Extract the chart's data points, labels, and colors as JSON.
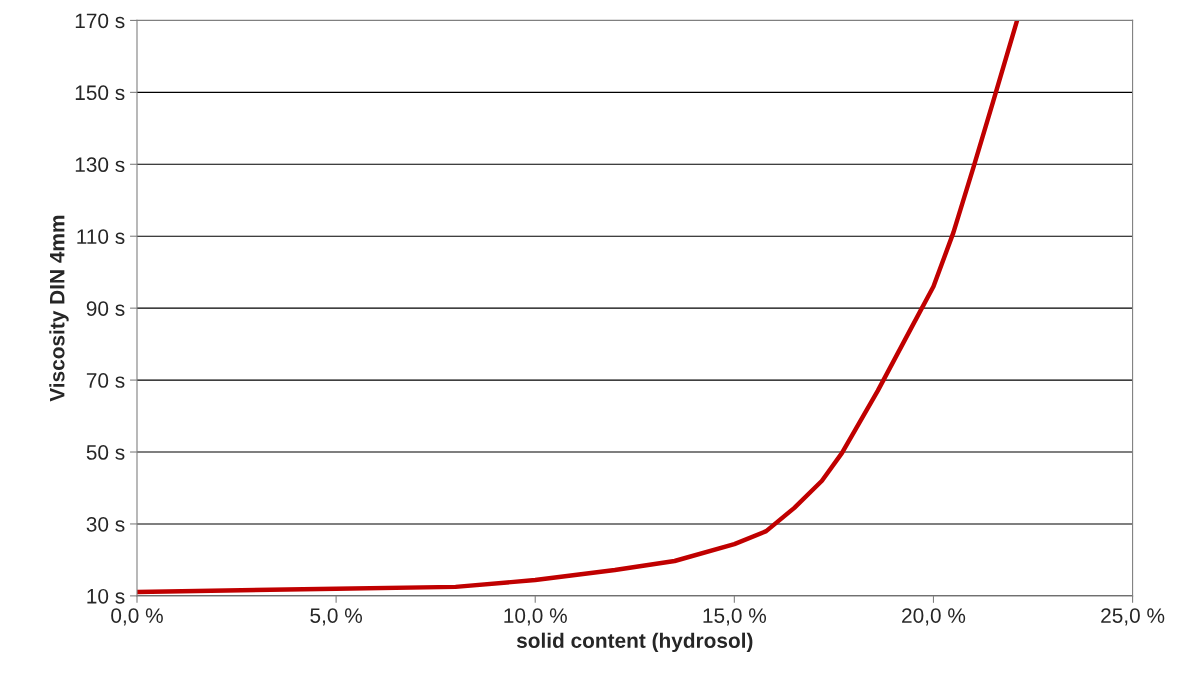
{
  "chart_data": {
    "type": "line",
    "xlabel": "solid content (hydrosol)",
    "ylabel": "Viscosity DIN 4mm",
    "series": [
      {
        "color": "#c00000",
        "x": [
          0,
          5,
          8,
          10,
          12,
          13.5,
          15,
          15.8,
          16.5,
          17.2,
          17.7,
          18.6,
          19.4,
          20,
          20.5,
          21,
          21.5,
          22.1
        ],
        "values": [
          11.1,
          12,
          12.5,
          14.4,
          17.2,
          19.7,
          24.4,
          28,
          34.4,
          42,
          49.7,
          67,
          83.6,
          96,
          111,
          129,
          147.5,
          170
        ]
      }
    ],
    "xlim": [
      0,
      25
    ],
    "xticks": [
      {
        "value": 0,
        "label": "0,0 %"
      },
      {
        "value": 5,
        "label": "5,0 %"
      },
      {
        "value": 10,
        "label": "10,0 %"
      },
      {
        "value": 15,
        "label": "15,0 %"
      },
      {
        "value": 20,
        "label": "20,0 %"
      },
      {
        "value": 25,
        "label": "25,0 %"
      }
    ],
    "ylim": [
      10,
      170
    ],
    "yticks": [
      {
        "value": 10,
        "label": "10 s"
      },
      {
        "value": 30,
        "label": "30 s"
      },
      {
        "value": 50,
        "label": "50 s"
      },
      {
        "value": 70,
        "label": "70 s"
      },
      {
        "value": 90,
        "label": "90 s"
      },
      {
        "value": 110,
        "label": "110 s"
      },
      {
        "value": 130,
        "label": "130 s"
      },
      {
        "value": 150,
        "label": "150 s"
      },
      {
        "value": 170,
        "label": "170 s"
      }
    ],
    "grid": "y",
    "marker": "none",
    "line_style": "solid"
  }
}
